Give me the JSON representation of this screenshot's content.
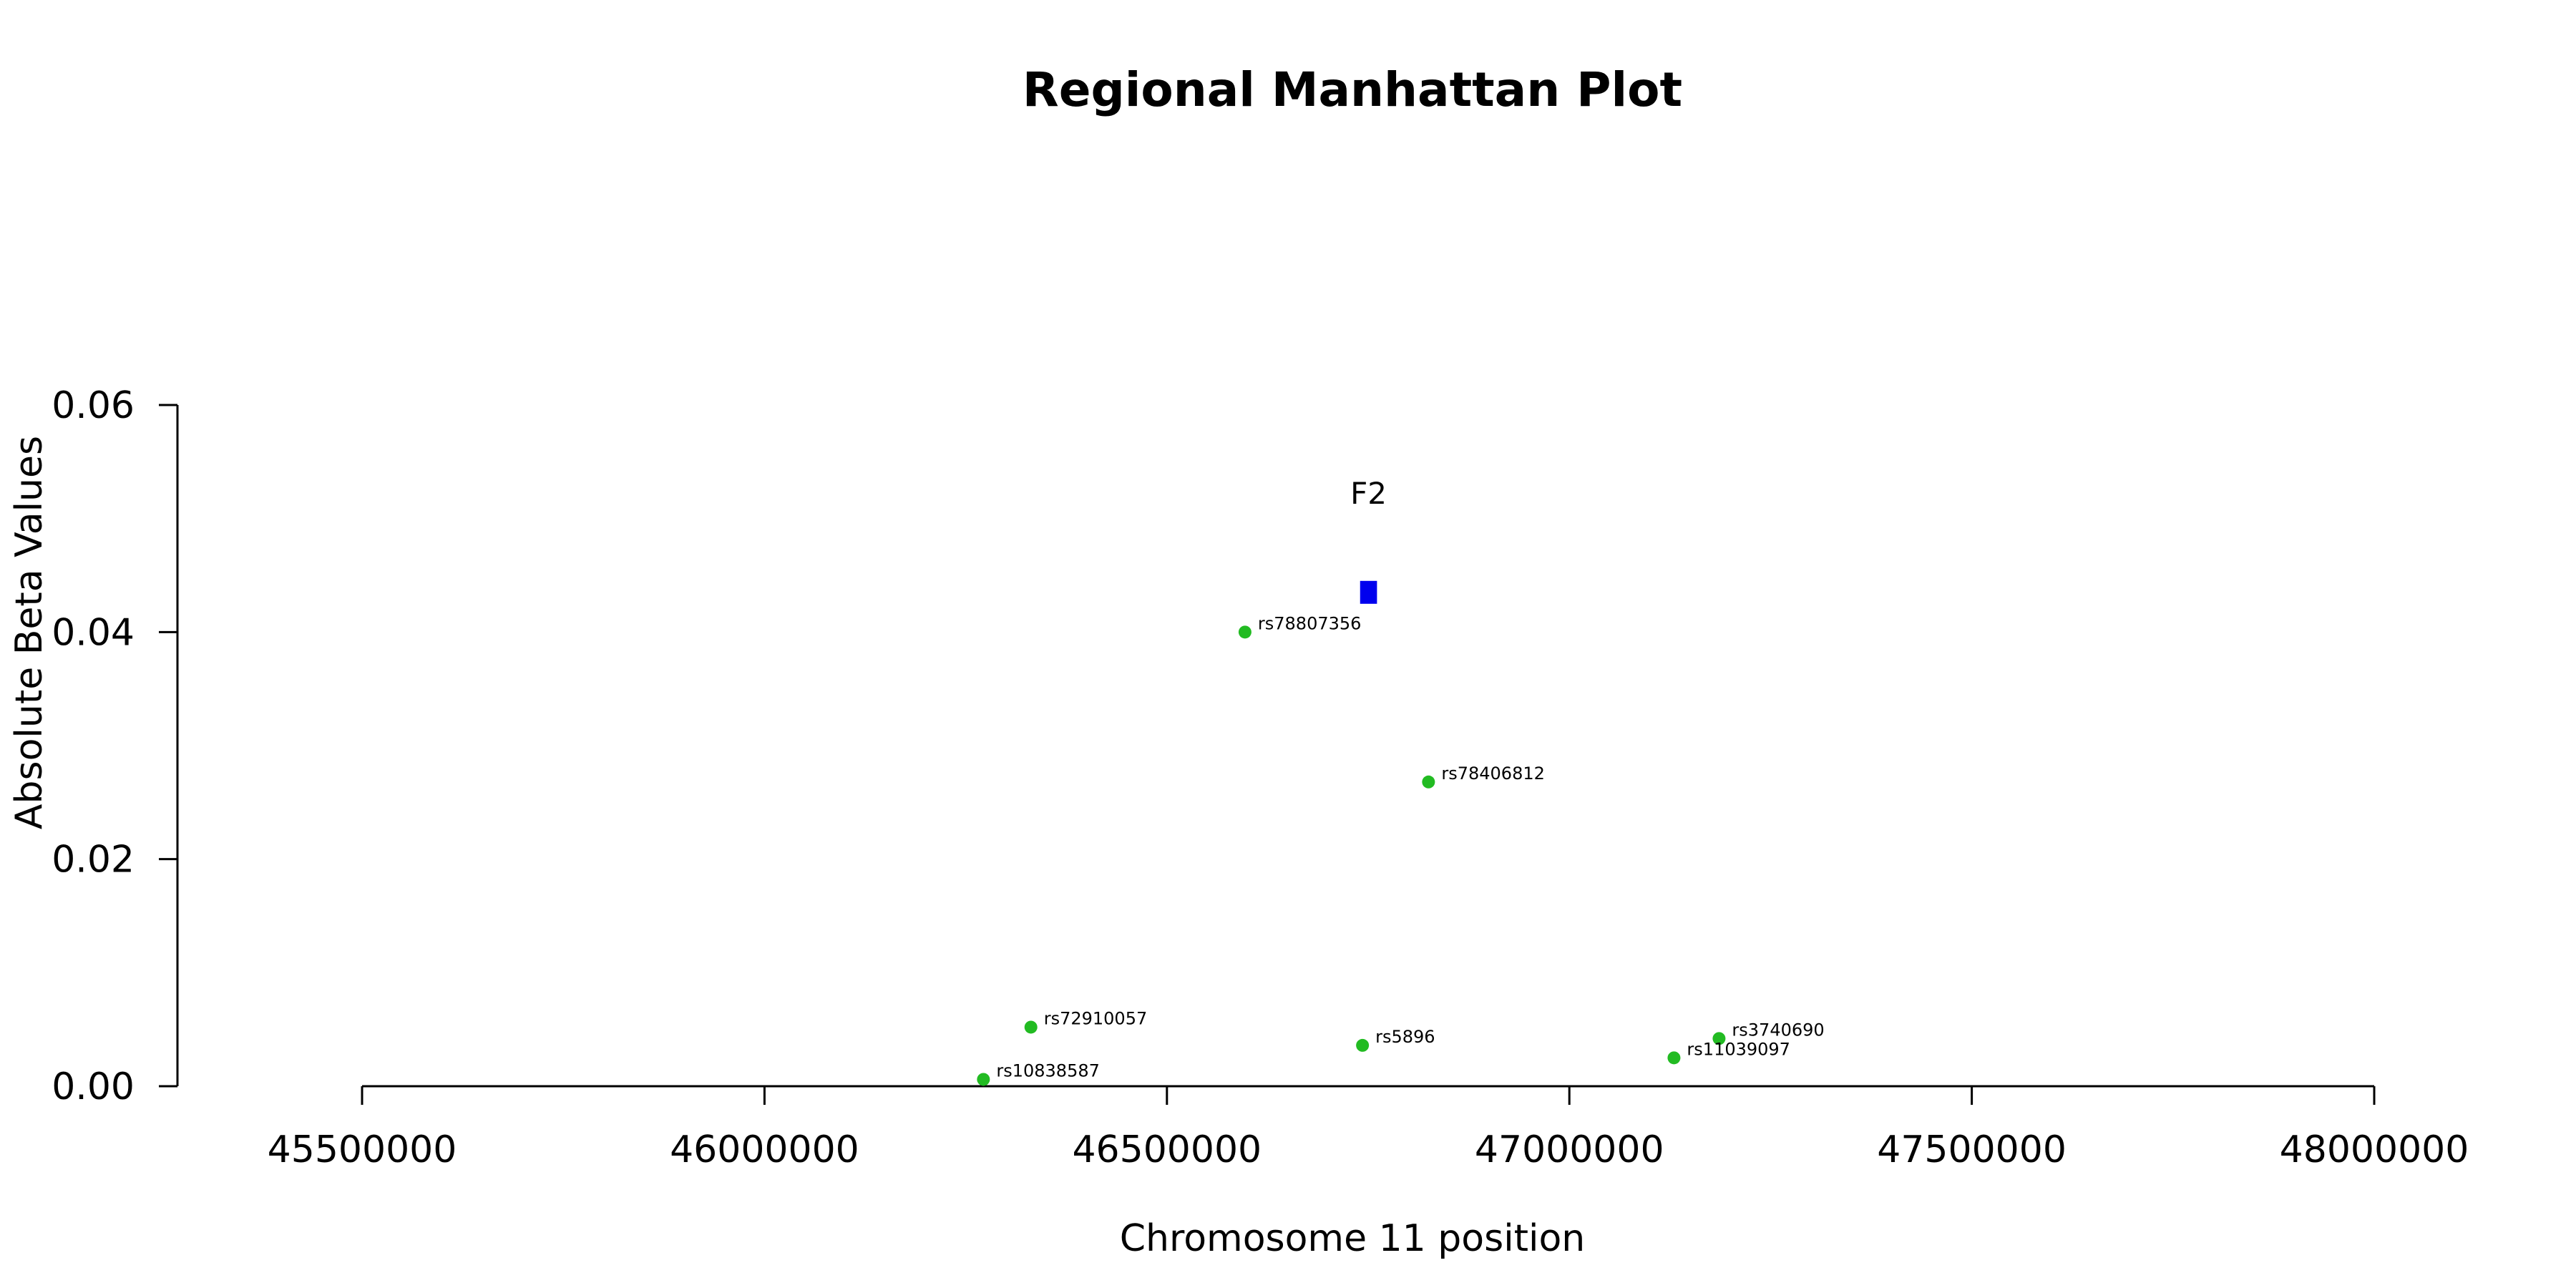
{
  "chart_data": {
    "type": "scatter",
    "title": "Regional Manhattan Plot",
    "xlabel": "Chromosome 11 position",
    "ylabel": "Absolute Beta Values",
    "xlim": [
      45500000,
      48000000
    ],
    "ylim": [
      0,
      0.06
    ],
    "x_ticks": [
      45500000,
      46000000,
      46500000,
      47000000,
      47500000,
      48000000
    ],
    "x_tick_labels": [
      "45500000",
      "46000000",
      "46500000",
      "47000000",
      "47500000",
      "48000000"
    ],
    "y_ticks": [
      0,
      0.02,
      0.04,
      0.06
    ],
    "y_tick_labels": [
      "0.00",
      "0.02",
      "0.04",
      "0.06"
    ],
    "grid": false,
    "point_color": "#22bb22",
    "gene_color": "#0000ee",
    "points": [
      {
        "label": "rs78807356",
        "x": 46597000,
        "y": 0.04
      },
      {
        "label": "rs78406812",
        "x": 46825000,
        "y": 0.0268
      },
      {
        "label": "rs72910057",
        "x": 46331000,
        "y": 0.0052
      },
      {
        "label": "rs5896",
        "x": 46743000,
        "y": 0.0036
      },
      {
        "label": "rs3740690",
        "x": 47186000,
        "y": 0.0042
      },
      {
        "label": "rs11039097",
        "x": 47130000,
        "y": 0.0025
      },
      {
        "label": "rs10838587",
        "x": 46272000,
        "y": 0.0006
      }
    ],
    "genes": [
      {
        "label": "F2",
        "x_start": 46740000,
        "x_end": 46761000,
        "y": 0.0435
      }
    ]
  }
}
